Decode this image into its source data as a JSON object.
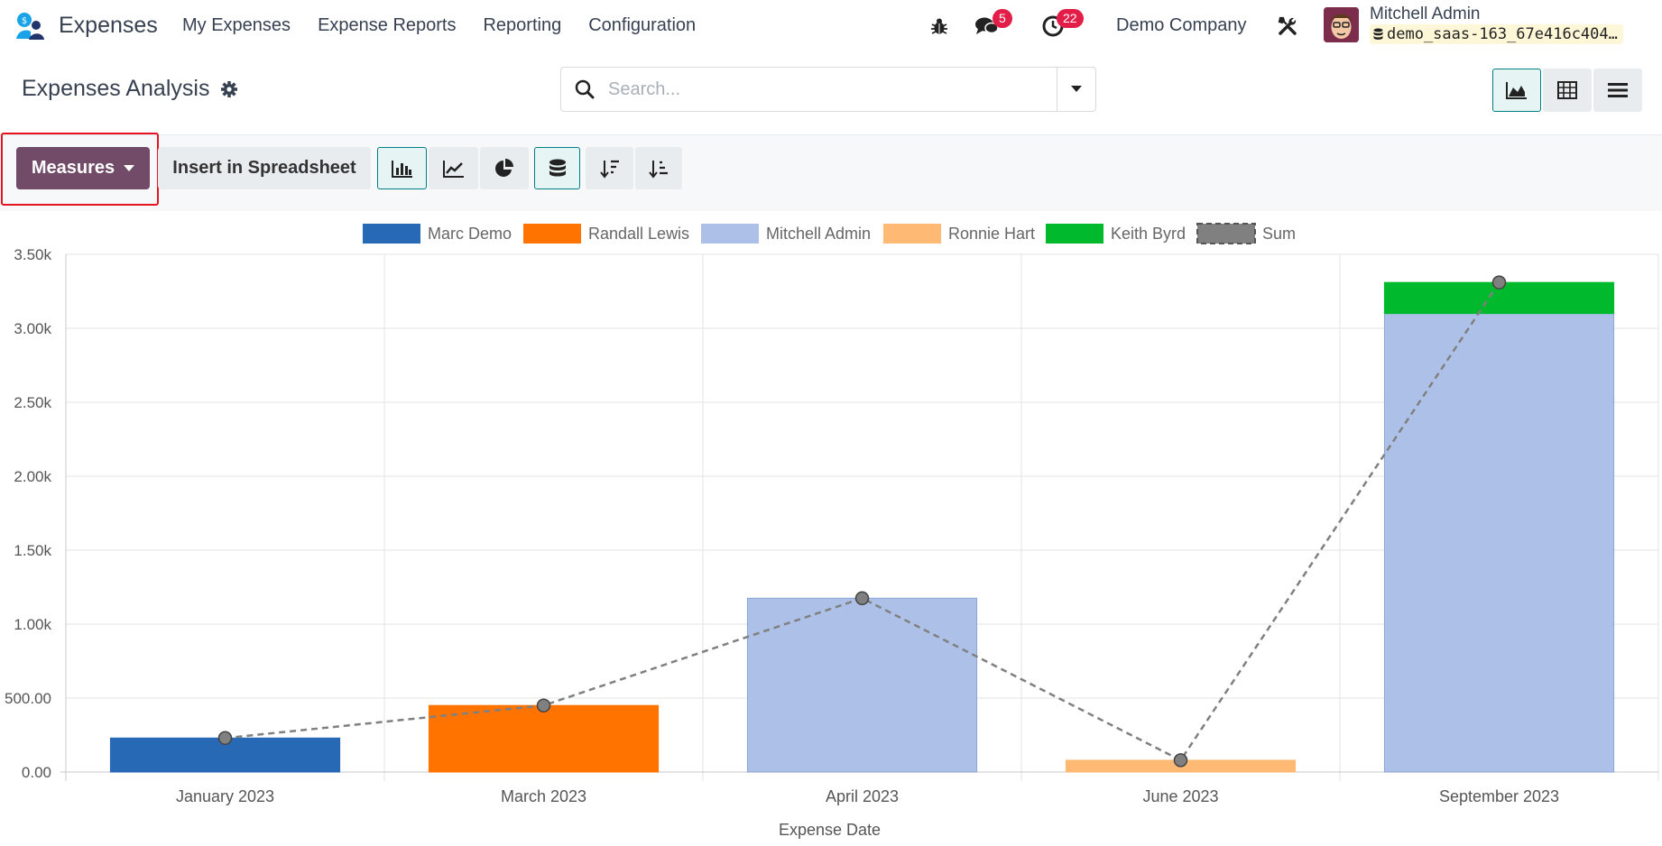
{
  "navbar": {
    "app_name": "Expenses",
    "menu": [
      "My Expenses",
      "Expense Reports",
      "Reporting",
      "Configuration"
    ],
    "messages_count": "5",
    "activities_count": "22",
    "company": "Demo Company",
    "user_name": "Mitchell Admin",
    "db_name": "demo_saas-163_67e416c404…"
  },
  "control": {
    "title": "Expenses Analysis",
    "search_placeholder": "Search..."
  },
  "toolbar": {
    "measures_label": "Measures",
    "insert_label": "Insert in Spreadsheet"
  },
  "colors": {
    "accent": "#714b67",
    "teal": "#017e84",
    "marc": "#2869b5",
    "randall": "#ff7300",
    "mitchell": "#adc1e8",
    "ronnie": "#feba75",
    "keith": "#00b92d",
    "sum": "#808080"
  },
  "chart_data": {
    "type": "bar",
    "stacked": true,
    "xlabel": "Expense Date",
    "ylabel": "",
    "ylim": [
      0,
      3500
    ],
    "yticks": [
      0,
      500,
      1000,
      1500,
      2000,
      2500,
      3000,
      3500
    ],
    "ytick_labels": [
      "0.00",
      "500.00",
      "1.00k",
      "1.50k",
      "2.00k",
      "2.50k",
      "3.00k",
      "3.50k"
    ],
    "grid": true,
    "legend": "top-center",
    "categories": [
      "January 2023",
      "March 2023",
      "April 2023",
      "June 2023",
      "September 2023"
    ],
    "series": [
      {
        "name": "Marc Demo",
        "values": [
          230,
          0,
          0,
          0,
          0
        ]
      },
      {
        "name": "Randall Lewis",
        "values": [
          0,
          450,
          0,
          0,
          0
        ]
      },
      {
        "name": "Mitchell Admin",
        "values": [
          0,
          0,
          1175,
          0,
          3100
        ]
      },
      {
        "name": "Ronnie Hart",
        "values": [
          0,
          0,
          0,
          80,
          0
        ]
      },
      {
        "name": "Keith Byrd",
        "values": [
          0,
          0,
          0,
          0,
          210
        ]
      }
    ],
    "sum_line": {
      "name": "Sum",
      "values": [
        230,
        450,
        1175,
        80,
        3310
      ]
    }
  }
}
